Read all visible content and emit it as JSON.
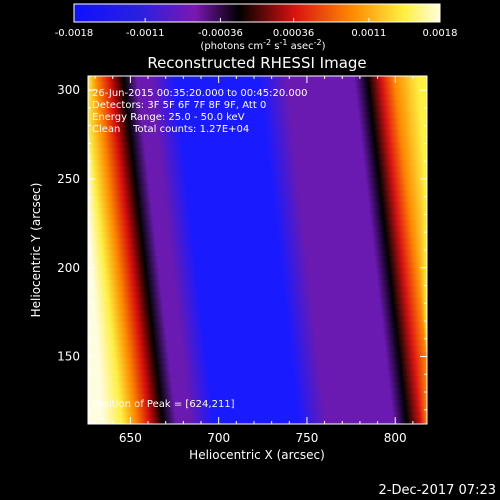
{
  "colorbar": {
    "tick_labels": [
      "-0.0018",
      "-0.0011",
      "-0.00036",
      "0.00036",
      "0.0011",
      "0.0018"
    ],
    "units": {
      "prefix": "(photons cm",
      "sup1": "-2",
      "mid": " s",
      "sup2": "-1",
      "mid2": " asec",
      "sup3": "-2",
      "suffix": ")"
    },
    "range": [
      -0.0018,
      0.0018
    ],
    "ticks": [
      -0.0018,
      -0.0011,
      -0.00036,
      0.00036,
      0.0011,
      0.0018
    ]
  },
  "colors": {
    "blue": "#1a1aff",
    "purple": "#6a1ab0",
    "black": "#000000",
    "red": "#d81010",
    "orange": "#ff8a00",
    "yellow": "#ffef40",
    "white": "#fffde0"
  },
  "chart_data": {
    "type": "heatmap",
    "title": "Reconstructed RHESSI Image",
    "xlabel": "Heliocentric X (arcsec)",
    "ylabel": "Heliocentric Y (arcsec)",
    "xlim": [
      626,
      818
    ],
    "ylim": [
      112,
      308
    ],
    "x_ticks": [
      650,
      700,
      750,
      800
    ],
    "y_ticks": [
      150,
      200,
      250,
      300
    ],
    "x_tick_labels": [
      "650",
      "700",
      "750",
      "800"
    ],
    "y_tick_labels": [
      "150",
      "200",
      "250",
      "300"
    ],
    "annotations": [
      "26-Jun-2015 00:35:20.000 to 00:45:20.000",
      "Detectors: 3F 5F 6F 7F 8F 9F, Att 0",
      "Energy Range: 25.0 - 50.0 keV",
      "Clean    Total counts: 1.27E+04"
    ],
    "peak_label": "Position of Peak = [624,211]",
    "peak_position": [
      624,
      211
    ],
    "stripe_tilt": "diagonal, upper edge shifted left"
  },
  "footer": {
    "timestamp": "2-Dec-2017 07:23"
  }
}
